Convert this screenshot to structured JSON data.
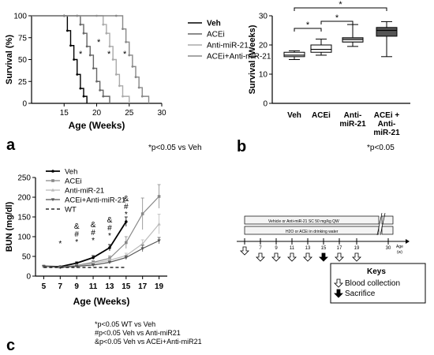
{
  "panels": {
    "a": {
      "letter": "a",
      "footnote": "*p<0.05 vs Veh",
      "stars": [
        "*",
        "*",
        "*",
        "*"
      ]
    },
    "b": {
      "letter": "b",
      "footnote": "*p<0.05",
      "stars": [
        "*",
        "*",
        "*"
      ]
    },
    "c": {
      "letter": "c",
      "footnotes": [
        "*p<0.05 WT vs Veh",
        "#p<0.05 Veh vs Anti-miR21",
        "&p<0.05 Veh vs ACEi+Anti-miR21"
      ],
      "sig_marks": {
        "7": [
          "*"
        ],
        "9": [
          "&",
          "#",
          "*"
        ],
        "11": [
          "&",
          "#",
          "*"
        ],
        "13": [
          "&",
          "#",
          "*"
        ],
        "15": [
          "&",
          "#",
          "*"
        ]
      }
    }
  },
  "timeline": {
    "bar1": "Vehicle or Anti-miR-21 SC 50 mg/kg QW",
    "bar2": "H2O or ACEi in drinking water",
    "ticks": [
      "7",
      "9",
      "11",
      "13",
      "15",
      "17",
      "19",
      "30"
    ],
    "age_label": "Age",
    "age_unit": "(w)",
    "keys_title": "Keys",
    "keys": [
      "Blood collection",
      "Sacrifice"
    ]
  },
  "chart_data": [
    {
      "type": "line",
      "chart": "survival",
      "xlabel": "Age (Weeks)",
      "ylabel": "Survival (%)",
      "xlim": [
        10,
        30
      ],
      "ylim": [
        0,
        100
      ],
      "xticks": [
        15,
        20,
        25,
        30
      ],
      "yticks": [
        0,
        25,
        50,
        75,
        100
      ],
      "series": [
        {
          "name": "Veh",
          "color": "#000000",
          "x": [
            10,
            15,
            15.5,
            16,
            16.5,
            17,
            17.5,
            18,
            18.5
          ],
          "y": [
            100,
            100,
            83,
            66,
            50,
            33,
            17,
            8,
            0
          ]
        },
        {
          "name": "ACEi",
          "color": "#666666",
          "x": [
            10,
            17,
            17.5,
            18,
            18.5,
            19,
            19.5,
            20,
            20.5,
            21,
            22
          ],
          "y": [
            100,
            100,
            90,
            80,
            65,
            55,
            40,
            25,
            15,
            8,
            0
          ]
        },
        {
          "name": "Anti-miR-21",
          "color": "#aaaaaa",
          "x": [
            10,
            20,
            21,
            21.5,
            22,
            22.5,
            23,
            23.5,
            24,
            25
          ],
          "y": [
            100,
            100,
            90,
            80,
            65,
            50,
            33,
            20,
            8,
            0
          ]
        },
        {
          "name": "ACEi+Anti-miR-21",
          "color": "#888888",
          "x": [
            10,
            23,
            24,
            24.5,
            25,
            25.5,
            26,
            26.5,
            27,
            28
          ],
          "y": [
            100,
            100,
            85,
            70,
            55,
            42,
            30,
            18,
            8,
            0
          ]
        }
      ]
    },
    {
      "type": "box",
      "chart": "survival-weeks",
      "ylabel": "Survival (Weeks)",
      "ylim": [
        0,
        30
      ],
      "yticks": [
        0,
        10,
        20,
        30
      ],
      "categories": [
        "Veh",
        "ACEi",
        "Anti-\nmiR-21",
        "ACEi +\nAnti-\nmiR-21"
      ],
      "boxes": [
        {
          "min": 15,
          "q1": 16,
          "median": 16.5,
          "q3": 17.5,
          "max": 18,
          "color": "#ffffff"
        },
        {
          "min": 16.5,
          "q1": 17.5,
          "median": 18.5,
          "q3": 20,
          "max": 22,
          "color": "#ffffff"
        },
        {
          "min": 19.5,
          "q1": 21,
          "median": 22,
          "q3": 22.5,
          "max": 27,
          "color": "#d9d9d9"
        },
        {
          "min": 16,
          "q1": 23,
          "median": 25,
          "q3": 26,
          "max": 28,
          "color": "#555555"
        }
      ]
    },
    {
      "type": "line",
      "chart": "bun",
      "xlabel": "Age (Weeks)",
      "ylabel": "BUN (mg/dl)",
      "xlim": [
        4,
        20
      ],
      "ylim": [
        0,
        250
      ],
      "xticks": [
        5,
        7,
        9,
        11,
        13,
        15,
        17,
        19
      ],
      "yticks": [
        0,
        50,
        100,
        150,
        200,
        250
      ],
      "series": [
        {
          "name": "Veh",
          "color": "#000000",
          "dash": "none",
          "x": [
            5,
            7,
            9,
            11,
            13,
            15
          ],
          "y": [
            25,
            24,
            33,
            47,
            72,
            138
          ],
          "err": [
            2,
            2,
            3,
            5,
            8,
            12
          ]
        },
        {
          "name": "ACEi",
          "color": "#888888",
          "dash": "none",
          "x": [
            5,
            7,
            9,
            11,
            13,
            15,
            17,
            19
          ],
          "y": [
            25,
            23,
            27,
            35,
            45,
            85,
            158,
            202
          ],
          "err": [
            2,
            2,
            3,
            4,
            6,
            15,
            40,
            30
          ]
        },
        {
          "name": "Anti-miR-21",
          "color": "#bbbbbb",
          "dash": "none",
          "x": [
            5,
            7,
            9,
            11,
            13,
            15,
            17,
            19
          ],
          "y": [
            25,
            22,
            26,
            32,
            40,
            52,
            82,
            132
          ],
          "err": [
            2,
            2,
            2,
            3,
            4,
            6,
            10,
            25
          ]
        },
        {
          "name": "ACEi+Anti-miR-21",
          "color": "#555555",
          "dash": "none",
          "x": [
            5,
            7,
            9,
            11,
            13,
            15,
            17,
            19
          ],
          "y": [
            25,
            22,
            25,
            28,
            35,
            47,
            70,
            90
          ],
          "err": [
            2,
            2,
            2,
            3,
            3,
            5,
            8,
            8
          ]
        },
        {
          "name": "WT",
          "color": "#000000",
          "dash": "4,3",
          "x": [
            5,
            7,
            9,
            11,
            13,
            15
          ],
          "y": [
            22,
            22,
            22,
            22,
            22,
            22
          ],
          "err": [
            0,
            0,
            0,
            0,
            0,
            0
          ]
        }
      ]
    }
  ]
}
